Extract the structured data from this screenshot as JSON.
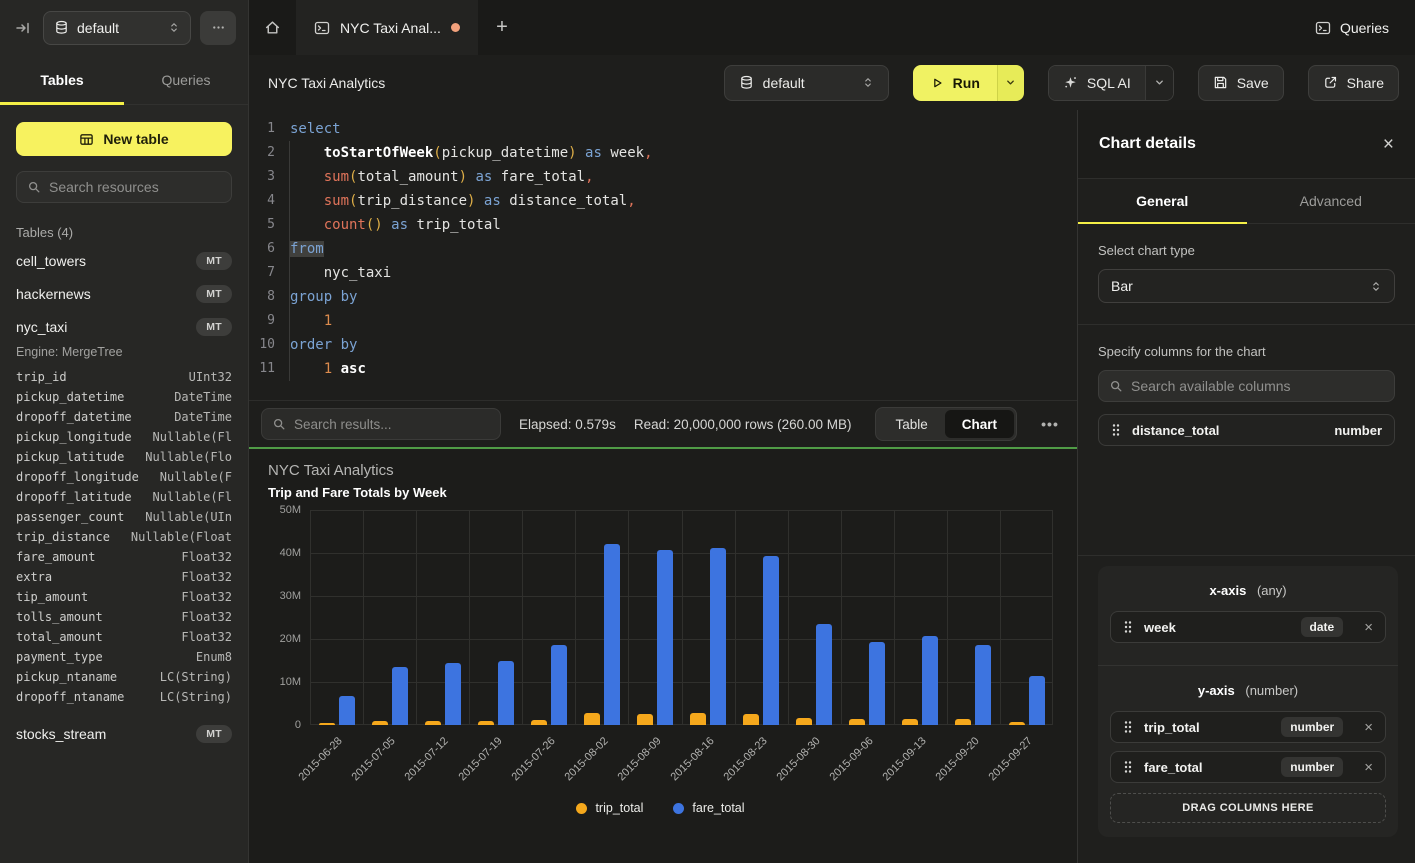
{
  "sidebar": {
    "db_selector": "default",
    "tabs": [
      "Tables",
      "Queries"
    ],
    "active_tab": "Tables",
    "new_table_label": "New table",
    "search_placeholder": "Search resources",
    "section_label": "Tables (4)",
    "tables": [
      {
        "name": "cell_towers",
        "badge": "MT"
      },
      {
        "name": "hackernews",
        "badge": "MT"
      },
      {
        "name": "nyc_taxi",
        "badge": "MT",
        "engine": "Engine: MergeTree",
        "columns": [
          [
            "trip_id",
            "UInt32"
          ],
          [
            "pickup_datetime",
            "DateTime"
          ],
          [
            "dropoff_datetime",
            "DateTime"
          ],
          [
            "pickup_longitude",
            "Nullable(Fl"
          ],
          [
            "pickup_latitude",
            "Nullable(Flo"
          ],
          [
            "dropoff_longitude",
            "Nullable(F"
          ],
          [
            "dropoff_latitude",
            "Nullable(Fl"
          ],
          [
            "passenger_count",
            "Nullable(UIn"
          ],
          [
            "trip_distance",
            "Nullable(Float"
          ],
          [
            "fare_amount",
            "Float32"
          ],
          [
            "extra",
            "Float32"
          ],
          [
            "tip_amount",
            "Float32"
          ],
          [
            "tolls_amount",
            "Float32"
          ],
          [
            "total_amount",
            "Float32"
          ],
          [
            "payment_type",
            "Enum8"
          ],
          [
            "pickup_ntaname",
            "LC(String)"
          ],
          [
            "dropoff_ntaname",
            "LC(String)"
          ]
        ]
      },
      {
        "name": "stocks_stream",
        "badge": "MT"
      }
    ]
  },
  "tabbar": {
    "tab_title": "NYC Taxi Anal...",
    "tab_dot_color": "#f2a17c",
    "queries_label": "Queries"
  },
  "toolbar": {
    "title": "NYC Taxi Analytics",
    "db_selector": "default",
    "run_label": "Run",
    "sql_ai_label": "SQL AI",
    "save_label": "Save",
    "share_label": "Share"
  },
  "editor": {
    "lines": [
      [
        [
          "kw",
          "select"
        ]
      ],
      [
        [
          "id",
          "    "
        ],
        [
          "fn",
          "toStartOfWeek"
        ],
        [
          "pa",
          "("
        ],
        [
          "id",
          "pickup_datetime"
        ],
        [
          "pa",
          ")"
        ],
        [
          "id",
          " "
        ],
        [
          "kw",
          "as"
        ],
        [
          "id",
          " week"
        ],
        [
          "cm",
          ","
        ]
      ],
      [
        [
          "id",
          "    "
        ],
        [
          "ag",
          "sum"
        ],
        [
          "pa",
          "("
        ],
        [
          "id",
          "total_amount"
        ],
        [
          "pa",
          ")"
        ],
        [
          "id",
          " "
        ],
        [
          "kw",
          "as"
        ],
        [
          "id",
          " fare_total"
        ],
        [
          "cm",
          ","
        ]
      ],
      [
        [
          "id",
          "    "
        ],
        [
          "ag",
          "sum"
        ],
        [
          "pa",
          "("
        ],
        [
          "id",
          "trip_distance"
        ],
        [
          "pa",
          ")"
        ],
        [
          "id",
          " "
        ],
        [
          "kw",
          "as"
        ],
        [
          "id",
          " distance_total"
        ],
        [
          "cm",
          ","
        ]
      ],
      [
        [
          "id",
          "    "
        ],
        [
          "ag",
          "count"
        ],
        [
          "pa",
          "()"
        ],
        [
          "id",
          " "
        ],
        [
          "kw",
          "as"
        ],
        [
          "id",
          " trip_total"
        ]
      ],
      [
        [
          "kx",
          "from"
        ]
      ],
      [
        [
          "id",
          "    nyc_taxi"
        ]
      ],
      [
        [
          "kw",
          "group by"
        ]
      ],
      [
        [
          "id",
          "    "
        ],
        [
          "nm",
          "1"
        ]
      ],
      [
        [
          "kw",
          "order by"
        ]
      ],
      [
        [
          "id",
          "    "
        ],
        [
          "nm",
          "1"
        ],
        [
          "id",
          " "
        ],
        [
          "fn",
          "asc"
        ]
      ]
    ]
  },
  "results": {
    "search_placeholder": "Search results...",
    "elapsed": "Elapsed: 0.579s",
    "read": "Read: 20,000,000 rows (260.00 MB)",
    "view_toggle": [
      "Table",
      "Chart"
    ],
    "active_view": "Chart"
  },
  "chart_data": {
    "type": "bar",
    "title": "NYC Taxi Analytics",
    "subtitle": "Trip and Fare Totals by Week",
    "categories": [
      "2015-06-28",
      "2015-07-05",
      "2015-07-12",
      "2015-07-19",
      "2015-07-26",
      "2015-08-02",
      "2015-08-09",
      "2015-08-16",
      "2015-08-23",
      "2015-08-30",
      "2015-09-06",
      "2015-09-13",
      "2015-09-20",
      "2015-09-27"
    ],
    "series": [
      {
        "name": "trip_total",
        "color": "#f5a81c",
        "values": [
          500000,
          900000,
          1000000,
          1000000,
          1200000,
          2800000,
          2600000,
          2900000,
          2500000,
          1700000,
          1500000,
          1500000,
          1500000,
          800000
        ]
      },
      {
        "name": "fare_total",
        "color": "#3d74e0",
        "values": [
          6800000,
          13500000,
          14500000,
          15000000,
          18600000,
          42000000,
          40700000,
          41200000,
          39300000,
          23500000,
          19400000,
          20800000,
          18600000,
          11400000
        ]
      }
    ],
    "ylim": [
      0,
      50000000
    ],
    "yticks": [
      {
        "v": 0,
        "label": "0"
      },
      {
        "v": 10000000,
        "label": "10M"
      },
      {
        "v": 20000000,
        "label": "20M"
      },
      {
        "v": 30000000,
        "label": "30M"
      },
      {
        "v": 40000000,
        "label": "40M"
      },
      {
        "v": 50000000,
        "label": "50M"
      }
    ],
    "grid": true,
    "legend_position": "bottom",
    "xlabel": "",
    "ylabel": ""
  },
  "panel": {
    "title": "Chart details",
    "tabs": [
      "General",
      "Advanced"
    ],
    "active_tab": "General",
    "chart_type_label": "Select chart type",
    "chart_type_value": "Bar",
    "columns_label": "Specify columns for the chart",
    "columns_search_placeholder": "Search available columns",
    "available_columns": [
      {
        "name": "distance_total",
        "type": "number"
      }
    ],
    "x_axis": {
      "label": "x-axis",
      "qualifier": "(any)",
      "items": [
        {
          "name": "week",
          "type": "date"
        }
      ]
    },
    "y_axis": {
      "label": "y-axis",
      "qualifier": "(number)",
      "items": [
        {
          "name": "trip_total",
          "type": "number"
        },
        {
          "name": "fare_total",
          "type": "number"
        }
      ]
    },
    "drop_zone_label": "DRAG COLUMNS HERE"
  }
}
